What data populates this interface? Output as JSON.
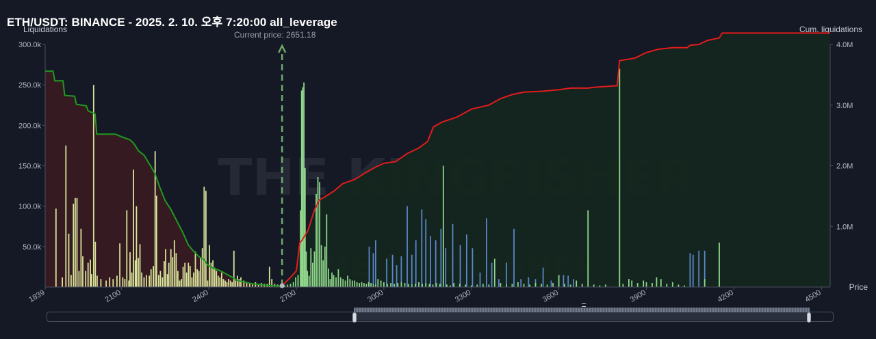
{
  "header": {
    "title": "ETH/USDT: BINANCE - 2025. 2. 10. 오후 7:20:00 all_leverage",
    "left_axis_label": "Liquidations",
    "right_axis_label": "Cum. liquidations",
    "x_axis_label": "Price",
    "current_price_label": "Current price: 2651.18",
    "watermark": "THE KINGFISHER",
    "watermark_suffix": "io"
  },
  "colors": {
    "background": "#151925",
    "long_cum_line": "#1f9a1f",
    "long_cum_fill": "#3a1b22",
    "short_cum_line": "#e21c1c",
    "short_cum_fill": "#13261e",
    "bar_long": "#d8e49a",
    "bar_short_green": "#8fd58a",
    "bar_short_blue": "#5b86c8",
    "current_price_marker": "#6fa86b"
  },
  "chart_data": {
    "type": "bar",
    "title": "ETH/USDT: BINANCE - 2025. 2. 10. 오후 7:20:00 all_leverage",
    "xlabel": "Price",
    "ylabel": "Liquidations",
    "y2label": "Cum. liquidations",
    "xlim": [
      1839,
      4530
    ],
    "ylim": [
      0,
      300000
    ],
    "y2lim": [
      0,
      4000000
    ],
    "x_ticks": [
      "1839",
      "2100",
      "2400",
      "2700",
      "3000",
      "3300",
      "3600",
      "3900",
      "4200",
      "4500"
    ],
    "x_tick_values": [
      1839,
      2100,
      2400,
      2700,
      3000,
      3300,
      3600,
      3900,
      4200,
      4500
    ],
    "y_ticks": [
      "300.0k",
      "250.0k",
      "200.0k",
      "150.0k",
      "100.0k",
      "50.0k"
    ],
    "y_tick_values": [
      300000,
      250000,
      200000,
      150000,
      100000,
      50000
    ],
    "y2_ticks": [
      "4.0M",
      "3.0M",
      "2.0M",
      "1.0M"
    ],
    "y2_tick_values": [
      4000000,
      3000000,
      2000000,
      1000000
    ],
    "current_price": 2651.18,
    "bars_long": [
      [
        1876,
        97000
      ],
      [
        1898,
        12000
      ],
      [
        1910,
        175000
      ],
      [
        1920,
        66000
      ],
      [
        1928,
        15000
      ],
      [
        1936,
        103000
      ],
      [
        1942,
        110000
      ],
      [
        1948,
        110000
      ],
      [
        1955,
        20000
      ],
      [
        1962,
        72000
      ],
      [
        1968,
        38000
      ],
      [
        1978,
        20000
      ],
      [
        1986,
        30000
      ],
      [
        1994,
        34000
      ],
      [
        1998,
        16000
      ],
      [
        2005,
        250000
      ],
      [
        2011,
        56000
      ],
      [
        2017,
        14000
      ],
      [
        2030,
        10000
      ],
      [
        2048,
        8000
      ],
      [
        2060,
        12000
      ],
      [
        2072,
        10000
      ],
      [
        2085,
        14000
      ],
      [
        2095,
        54000
      ],
      [
        2105,
        12000
      ],
      [
        2112,
        10000
      ],
      [
        2119,
        95000
      ],
      [
        2126,
        8000
      ],
      [
        2130,
        43000
      ],
      [
        2136,
        18000
      ],
      [
        2142,
        145000
      ],
      [
        2148,
        33000
      ],
      [
        2152,
        100000
      ],
      [
        2158,
        36000
      ],
      [
        2164,
        53000
      ],
      [
        2170,
        18000
      ],
      [
        2178,
        12000
      ],
      [
        2186,
        15000
      ],
      [
        2196,
        14000
      ],
      [
        2202,
        22000
      ],
      [
        2210,
        26000
      ],
      [
        2216,
        168000
      ],
      [
        2221,
        113000
      ],
      [
        2228,
        15000
      ],
      [
        2234,
        20000
      ],
      [
        2241,
        12000
      ],
      [
        2247,
        32000
      ],
      [
        2252,
        47000
      ],
      [
        2258,
        16000
      ],
      [
        2263,
        30000
      ],
      [
        2270,
        47000
      ],
      [
        2276,
        37000
      ],
      [
        2282,
        58000
      ],
      [
        2288,
        42000
      ],
      [
        2294,
        20000
      ],
      [
        2300,
        8000
      ],
      [
        2306,
        10000
      ],
      [
        2312,
        25000
      ],
      [
        2318,
        30000
      ],
      [
        2324,
        18000
      ],
      [
        2330,
        30000
      ],
      [
        2336,
        26000
      ],
      [
        2342,
        12000
      ],
      [
        2348,
        18000
      ],
      [
        2354,
        44000
      ],
      [
        2360,
        22000
      ],
      [
        2366,
        20000
      ],
      [
        2372,
        36000
      ],
      [
        2378,
        48000
      ],
      [
        2384,
        124000
      ],
      [
        2390,
        119000
      ],
      [
        2396,
        8000
      ],
      [
        2402,
        52000
      ],
      [
        2408,
        30000
      ],
      [
        2414,
        33000
      ],
      [
        2420,
        24000
      ],
      [
        2426,
        20000
      ],
      [
        2432,
        14000
      ],
      [
        2438,
        12000
      ],
      [
        2444,
        18000
      ],
      [
        2450,
        10000
      ],
      [
        2456,
        8000
      ],
      [
        2462,
        6000
      ],
      [
        2468,
        10000
      ],
      [
        2474,
        8000
      ],
      [
        2480,
        6000
      ],
      [
        2486,
        45000
      ],
      [
        2492,
        8000
      ],
      [
        2498,
        14000
      ],
      [
        2504,
        10000
      ],
      [
        2510,
        12000
      ],
      [
        2520,
        8000
      ],
      [
        2530,
        5000
      ],
      [
        2540,
        4000
      ],
      [
        2550,
        3000
      ],
      [
        2560,
        6000
      ],
      [
        2570,
        3000
      ],
      [
        2580,
        5000
      ],
      [
        2590,
        4000
      ],
      [
        2600,
        4000
      ],
      [
        2608,
        25000
      ],
      [
        2616,
        10000
      ],
      [
        2626,
        4000
      ],
      [
        2636,
        3000
      ],
      [
        2646,
        2000
      ]
    ],
    "bars_short": [
      [
        2660,
        2000
      ],
      [
        2670,
        3000
      ],
      [
        2680,
        4000
      ],
      [
        2690,
        6000
      ],
      [
        2698,
        12000
      ],
      [
        2706,
        15000
      ],
      [
        2714,
        95000
      ],
      [
        2718,
        243000
      ],
      [
        2722,
        247000
      ],
      [
        2726,
        253000
      ],
      [
        2730,
        147000
      ],
      [
        2734,
        44000
      ],
      [
        2738,
        20000
      ],
      [
        2744,
        14000
      ],
      [
        2750,
        48000
      ],
      [
        2756,
        30000
      ],
      [
        2762,
        44000
      ],
      [
        2768,
        115000
      ],
      [
        2774,
        136000
      ],
      [
        2780,
        130000
      ],
      [
        2786,
        52000
      ],
      [
        2792,
        33000
      ],
      [
        2798,
        50000
      ],
      [
        2804,
        90000
      ],
      [
        2810,
        23000
      ],
      [
        2816,
        10000
      ],
      [
        2822,
        18000
      ],
      [
        2828,
        15000
      ],
      [
        2836,
        12000
      ],
      [
        2844,
        22000
      ],
      [
        2852,
        12000
      ],
      [
        2860,
        10000
      ],
      [
        2868,
        8000
      ],
      [
        2876,
        14000
      ],
      [
        2884,
        10000
      ],
      [
        2892,
        8000
      ],
      [
        2900,
        8000
      ],
      [
        2908,
        6000
      ],
      [
        2916,
        5000
      ],
      [
        2924,
        6000
      ],
      [
        2932,
        5000
      ],
      [
        2940,
        4000
      ],
      [
        2948,
        6000
      ],
      [
        2956,
        5000
      ],
      [
        2964,
        4000
      ],
      [
        2972,
        3000
      ],
      [
        2980,
        10000
      ],
      [
        2990,
        8000
      ],
      [
        3000,
        6000
      ],
      [
        3012,
        4000
      ],
      [
        3024,
        5000
      ],
      [
        3036,
        4000
      ],
      [
        3048,
        5000
      ],
      [
        3060,
        6000
      ],
      [
        3072,
        5000
      ],
      [
        3084,
        4000
      ],
      [
        3096,
        3000
      ],
      [
        3108,
        4000
      ],
      [
        3120,
        6000
      ],
      [
        3132,
        4000
      ],
      [
        3144,
        5000
      ],
      [
        3156,
        4000
      ],
      [
        3168,
        3000
      ],
      [
        3180,
        5000
      ],
      [
        3192,
        4000
      ],
      [
        3204,
        150000
      ],
      [
        3216,
        3000
      ],
      [
        3228,
        2000
      ],
      [
        3240,
        5000
      ],
      [
        3260,
        4000
      ],
      [
        3280,
        3000
      ],
      [
        3300,
        2000
      ],
      [
        3320,
        3000
      ],
      [
        3340,
        4000
      ],
      [
        3360,
        3000
      ],
      [
        3380,
        35000
      ],
      [
        3400,
        5000
      ],
      [
        3420,
        3000
      ],
      [
        3440,
        4000
      ],
      [
        3460,
        6000
      ],
      [
        3480,
        4000
      ],
      [
        3500,
        3000
      ],
      [
        3520,
        5000
      ],
      [
        3540,
        4000
      ],
      [
        3560,
        3000
      ],
      [
        3580,
        5000
      ],
      [
        3600,
        15000
      ],
      [
        3620,
        4000
      ],
      [
        3640,
        3000
      ],
      [
        3660,
        8000
      ],
      [
        3680,
        4000
      ],
      [
        3700,
        95000
      ],
      [
        3720,
        3000
      ],
      [
        3740,
        2000
      ],
      [
        3760,
        3000
      ],
      [
        3808,
        270000
      ],
      [
        3820,
        4000
      ],
      [
        3840,
        10000
      ],
      [
        3850,
        8000
      ],
      [
        3870,
        5000
      ],
      [
        3890,
        8000
      ],
      [
        3900,
        6000
      ],
      [
        3920,
        5000
      ],
      [
        3935,
        12000
      ],
      [
        3950,
        10000
      ],
      [
        3970,
        4000
      ],
      [
        3990,
        6000
      ],
      [
        4010,
        3000
      ],
      [
        4030,
        2000
      ],
      [
        4100,
        10000
      ],
      [
        4150,
        55000
      ]
    ],
    "bars_short_blue": [
      [
        2950,
        50000
      ],
      [
        2964,
        42000
      ],
      [
        2972,
        58000
      ],
      [
        3010,
        35000
      ],
      [
        3030,
        40000
      ],
      [
        3044,
        27000
      ],
      [
        3060,
        38000
      ],
      [
        3080,
        100000
      ],
      [
        3096,
        40000
      ],
      [
        3110,
        58000
      ],
      [
        3130,
        96000
      ],
      [
        3144,
        84000
      ],
      [
        3160,
        63000
      ],
      [
        3178,
        58000
      ],
      [
        3196,
        72000
      ],
      [
        3212,
        48000
      ],
      [
        3236,
        78000
      ],
      [
        3262,
        52000
      ],
      [
        3284,
        65000
      ],
      [
        3304,
        48000
      ],
      [
        3330,
        18000
      ],
      [
        3352,
        85000
      ],
      [
        3370,
        30000
      ],
      [
        3394,
        10000
      ],
      [
        3420,
        30000
      ],
      [
        3446,
        72000
      ],
      [
        3470,
        10000
      ],
      [
        3496,
        12000
      ],
      [
        3520,
        10000
      ],
      [
        3546,
        24000
      ],
      [
        3574,
        8000
      ],
      [
        3600,
        12000
      ],
      [
        3616,
        15000
      ],
      [
        3632,
        14000
      ],
      [
        3650,
        10000
      ],
      [
        4050,
        42000
      ],
      [
        4060,
        40000
      ],
      [
        4080,
        45000
      ],
      [
        4100,
        45000
      ]
    ],
    "cum_long_line": [
      [
        1839,
        267000
      ],
      [
        1866,
        267000
      ],
      [
        1872,
        255000
      ],
      [
        1900,
        255000
      ],
      [
        1906,
        237000
      ],
      [
        1940,
        236000
      ],
      [
        1946,
        226000
      ],
      [
        1980,
        224000
      ],
      [
        1986,
        218000
      ],
      [
        2010,
        214000
      ],
      [
        2016,
        189000
      ],
      [
        2080,
        189000
      ],
      [
        2100,
        186000
      ],
      [
        2130,
        182000
      ],
      [
        2142,
        178000
      ],
      [
        2160,
        168000
      ],
      [
        2178,
        163000
      ],
      [
        2200,
        150000
      ],
      [
        2216,
        140000
      ],
      [
        2230,
        125000
      ],
      [
        2250,
        107000
      ],
      [
        2270,
        96000
      ],
      [
        2290,
        82000
      ],
      [
        2310,
        68000
      ],
      [
        2330,
        52000
      ],
      [
        2346,
        45000
      ],
      [
        2368,
        37000
      ],
      [
        2384,
        34000
      ],
      [
        2394,
        28000
      ],
      [
        2410,
        24000
      ],
      [
        2440,
        20000
      ],
      [
        2470,
        14000
      ],
      [
        2500,
        8000
      ],
      [
        2550,
        4000
      ],
      [
        2600,
        2000
      ],
      [
        2651,
        1000
      ]
    ],
    "cum_short_line": [
      [
        2651,
        0
      ],
      [
        2660,
        5000
      ],
      [
        2680,
        12000
      ],
      [
        2700,
        20000
      ],
      [
        2712,
        55000
      ],
      [
        2720,
        58000
      ],
      [
        2740,
        70000
      ],
      [
        2762,
        95000
      ],
      [
        2780,
        108000
      ],
      [
        2800,
        112000
      ],
      [
        2830,
        119000
      ],
      [
        2860,
        128000
      ],
      [
        2900,
        133000
      ],
      [
        2940,
        142000
      ],
      [
        2970,
        148000
      ],
      [
        3000,
        153000
      ],
      [
        3040,
        155000
      ],
      [
        3080,
        165000
      ],
      [
        3120,
        172000
      ],
      [
        3150,
        180000
      ],
      [
        3170,
        198000
      ],
      [
        3200,
        204000
      ],
      [
        3250,
        210000
      ],
      [
        3300,
        220000
      ],
      [
        3360,
        225000
      ],
      [
        3400,
        233000
      ],
      [
        3440,
        238000
      ],
      [
        3480,
        241000
      ],
      [
        3540,
        242000
      ],
      [
        3600,
        244000
      ],
      [
        3640,
        246000
      ],
      [
        3700,
        246000
      ],
      [
        3720,
        247000
      ],
      [
        3800,
        249000
      ],
      [
        3808,
        280000
      ],
      [
        3860,
        283000
      ],
      [
        3900,
        290000
      ],
      [
        3940,
        294000
      ],
      [
        3990,
        296000
      ],
      [
        4040,
        296000
      ],
      [
        4050,
        299000
      ],
      [
        4080,
        300000
      ],
      [
        4110,
        305000
      ],
      [
        4150,
        308000
      ],
      [
        4160,
        314000
      ],
      [
        4530,
        314000
      ]
    ],
    "slider_window_start": 0.39,
    "slider_window_end": 0.97
  }
}
